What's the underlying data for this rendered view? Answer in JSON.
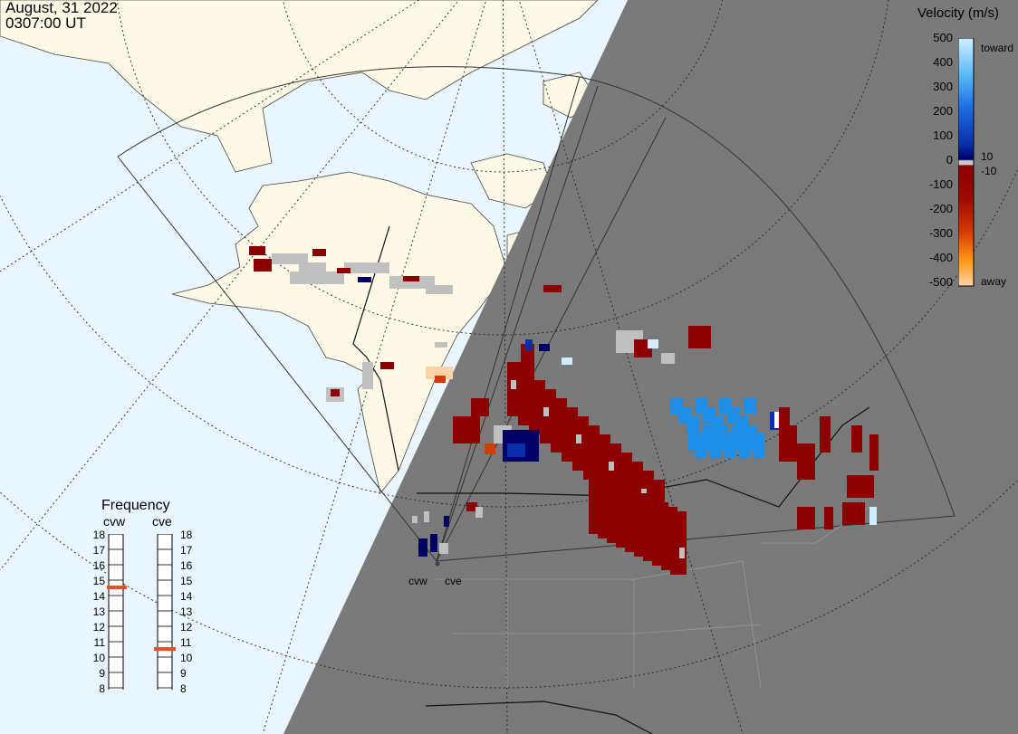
{
  "header": {
    "date": "August, 31 2022",
    "time": "0307:00 UT"
  },
  "velocity_scale": {
    "title": "Velocity (m/s)",
    "ticks": [
      "500",
      "400",
      "300",
      "200",
      "100",
      "0",
      "-100",
      "-200",
      "-300",
      "-400",
      "-500"
    ],
    "side_labels": {
      "toward": "toward",
      "plus": "10",
      "minus": "-10",
      "away": "away"
    },
    "colors": {
      "toward_top": "#cfeeff",
      "toward_mid": "#1e8ee8",
      "toward_low": "#0b2fa8",
      "near_zero": "#000066",
      "zero_band": "#c8c8c8",
      "away_low": "#8b0000",
      "away_mid": "#d43a06",
      "away_hi": "#ff9a1a",
      "away_top": "#ffd3a8"
    }
  },
  "frequency_panel": {
    "title": "Frequency",
    "radars": [
      "cvw",
      "cve"
    ],
    "ticks": [
      "18",
      "17",
      "16",
      "15",
      "14",
      "13",
      "12",
      "11",
      "10",
      "9",
      "8"
    ],
    "selected": {
      "cvw": 15,
      "cve": 11
    },
    "marker_color": "#e0522a"
  },
  "stations": {
    "cvw": "cvw",
    "cve": "cve"
  },
  "map": {
    "ocean_color": "#eaf6fd",
    "land_color": "#fdf9e6",
    "night_color": "#7a7a7a",
    "ground_scatter_color": "#c0c0c0"
  }
}
